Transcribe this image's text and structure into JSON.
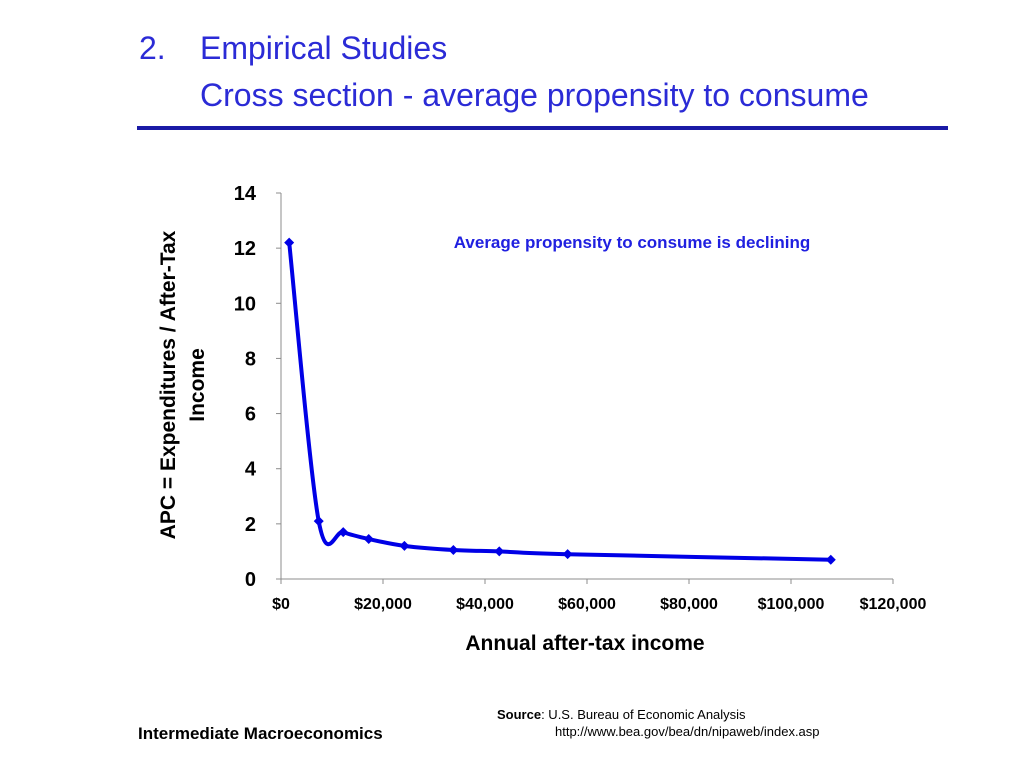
{
  "slide": {
    "title_number": "2.",
    "title_line1": "Empirical Studies",
    "title_line2": "Cross section - average propensity to consume",
    "footer": "Intermediate Macroeconomics",
    "source_label": "Source",
    "source_text": ": U.S. Bureau of Economic Analysis",
    "source_url": "http://www.bea.gov/bea/dn/nipaweb/index.asp"
  },
  "colors": {
    "title": "#2b2bd6",
    "rule": "#1a1aa6",
    "series": "#0000e6",
    "annotation": "#2020e0"
  },
  "chart_data": {
    "type": "line",
    "xlabel": "Annual after-tax income",
    "ylabel": "APC = Expenditures / After-Tax Income",
    "xlim": [
      0,
      120000
    ],
    "ylim": [
      0,
      14
    ],
    "x_ticks": [
      0,
      20000,
      40000,
      60000,
      80000,
      100000,
      120000
    ],
    "x_tick_labels": [
      "$0",
      "$20,000",
      "$40,000",
      "$60,000",
      "$80,000",
      "$100,000",
      "$120,000"
    ],
    "y_ticks": [
      0,
      2,
      4,
      6,
      8,
      10,
      12,
      14
    ],
    "y_tick_labels": [
      "0",
      "2",
      "4",
      "6",
      "8",
      "10",
      "12",
      "14"
    ],
    "grid": false,
    "annotation": "Average propensity to consume is declining",
    "series": [
      {
        "x": [
          1600,
          7400,
          12200,
          17200,
          24200,
          33800,
          42800,
          56200,
          107800
        ],
        "y": [
          12.2,
          2.1,
          1.7,
          1.45,
          1.2,
          1.05,
          1.0,
          0.9,
          0.7
        ]
      }
    ]
  }
}
